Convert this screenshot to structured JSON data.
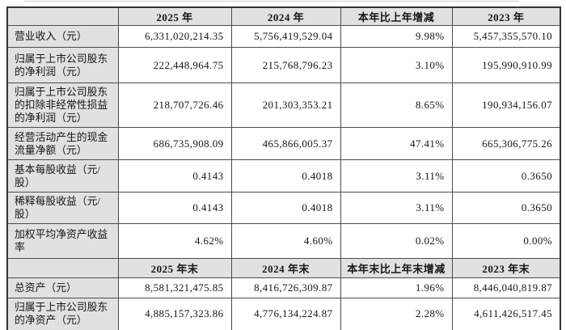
{
  "table": {
    "header_bg": "#e1e1e1",
    "label_bg": "#e1e1e1",
    "border_color": "#4d4d4d",
    "sections": [
      {
        "header": [
          "",
          "2025 年",
          "2024 年",
          "本年比上年增减",
          "2023 年"
        ],
        "rows": [
          {
            "label": "营业收入（元）",
            "values": [
              "6,331,020,214.35",
              "5,756,419,529.04",
              "9.98%",
              "5,457,355,570.10"
            ]
          },
          {
            "label": "归属于上市公司股东的净利润（元）",
            "values": [
              "222,448,964.75",
              "215,768,796.23",
              "3.10%",
              "195,990,910.99"
            ]
          },
          {
            "label": "归属于上市公司股东的扣除非经常性损益的净利润（元）",
            "values": [
              "218,707,726.46",
              "201,303,353.21",
              "8.65%",
              "190,934,156.07"
            ]
          },
          {
            "label": "经营活动产生的现金流量净额（元）",
            "values": [
              "686,735,908.09",
              "465,866,005.37",
              "47.41%",
              "665,306,775.26"
            ]
          },
          {
            "label": "基本每股收益（元/股）",
            "values": [
              "0.4143",
              "0.4018",
              "3.11%",
              "0.3650"
            ]
          },
          {
            "label": "稀释每股收益（元/股）",
            "values": [
              "0.4143",
              "0.4018",
              "3.11%",
              "0.3650"
            ]
          },
          {
            "label": "加权平均净资产收益率",
            "values": [
              "4.62%",
              "4.60%",
              "0.02%",
              "0.00%"
            ]
          }
        ]
      },
      {
        "header": [
          "",
          "2025 年末",
          "2024 年末",
          "本年末比上年末增减",
          "2023 年末"
        ],
        "rows": [
          {
            "label": "总资产（元）",
            "values": [
              "8,581,321,475.85",
              "8,416,726,309.87",
              "1.96%",
              "8,446,040,819.87"
            ]
          },
          {
            "label": "归属于上市公司股东的净资产（元）",
            "values": [
              "4,885,157,323.86",
              "4,776,134,224.87",
              "2.28%",
              "4,611,426,517.45"
            ]
          }
        ]
      }
    ]
  }
}
